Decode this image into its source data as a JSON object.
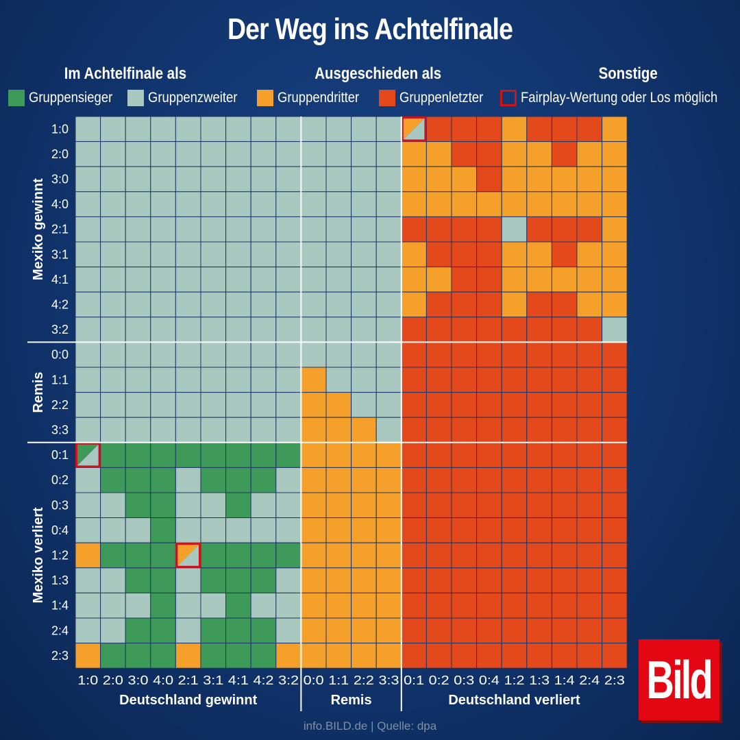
{
  "chart_data": {
    "type": "heatmap",
    "title": "Der Weg ins Achtelfinale",
    "legend_groups": [
      "Im Achtelfinale als",
      "Ausgeschieden als",
      "Sonstige"
    ],
    "legend": [
      {
        "code": "S",
        "label": "Gruppensieger",
        "color": "#3d9a58"
      },
      {
        "code": "Z",
        "label": "Gruppenzweiter",
        "color": "#a9c8c0"
      },
      {
        "code": "D",
        "label": "Gruppendritter",
        "color": "#f4a02a"
      },
      {
        "code": "L",
        "label": "Gruppenletzter",
        "color": "#e4491c"
      },
      {
        "code": "F",
        "label": "Fairplay-Wertung oder Los möglich",
        "color": "#d0121b"
      }
    ],
    "x_groups": [
      "Deutschland gewinnt",
      "Remis",
      "Deutschland verliert"
    ],
    "x_labels": [
      "1:0",
      "2:0",
      "3:0",
      "4:0",
      "2:1",
      "3:1",
      "4:1",
      "4:2",
      "3:2",
      "0:0",
      "1:1",
      "2:2",
      "3:3",
      "0:1",
      "0:2",
      "0:3",
      "0:4",
      "1:2",
      "1:3",
      "1:4",
      "2:4",
      "2:3"
    ],
    "y_groups": [
      "Mexiko gewinnt",
      "Remis",
      "Mexiko verliert"
    ],
    "y_labels": [
      "1:0",
      "2:0",
      "3:0",
      "4:0",
      "2:1",
      "3:1",
      "4:1",
      "4:2",
      "3:2",
      "0:0",
      "1:1",
      "2:2",
      "3:3",
      "0:1",
      "0:2",
      "0:3",
      "0:4",
      "1:2",
      "1:3",
      "1:4",
      "2:4",
      "2:3"
    ],
    "cells_note_codes": "S=Gruppensieger, Z=Gruppenzweiter, D=Gruppendritter, L=Gruppenletzter, X/Y=Fairplay-Wertung oder Los zwischen X und Y",
    "cells": [
      "Z Z Z Z Z Z Z Z Z Z Z Z Z D/Z L L L D L L L D",
      "Z Z Z Z Z Z Z Z Z Z Z Z Z D D L L D D L D D",
      "Z Z Z Z Z Z Z Z Z Z Z Z Z D D D L D D D D D",
      "Z Z Z Z Z Z Z Z Z Z Z Z Z D D D D D D D D D",
      "Z Z Z Z Z Z Z Z Z Z Z Z Z L L L L Z L L L D",
      "Z Z Z Z Z Z Z Z Z Z Z Z Z D L L L D D L D D",
      "Z Z Z Z Z Z Z Z Z Z Z Z Z D D L L D D D D D",
      "Z Z Z Z Z Z Z Z Z Z Z Z Z D L L L D L L D D",
      "Z Z Z Z Z Z Z Z Z Z Z Z Z L L L L L L L L Z",
      "Z Z Z Z Z Z Z Z Z Z Z Z Z L L L L L L L L L",
      "Z Z Z Z Z Z Z Z Z D Z Z Z L L L L L L L L L",
      "Z Z Z Z Z Z Z Z Z D D Z Z L L L L L L L L L",
      "Z Z Z Z Z Z Z Z Z D D D Z L L L L L L L L L",
      "S/Z S S S S S S S S D D D D L L L L L L L L L",
      "Z S S S Z S S S Z D D D D L L L L L L L L L",
      "Z Z S S Z Z S Z Z D D D D L L L L L L L L L",
      "Z Z Z S Z Z Z Z Z D D D D L L L L L L L L L",
      "D S S S D/Z S S S S D D D D L L L L L L L L L",
      "Z Z S S Z S S S Z D D D D L L L L L L L L L",
      "Z Z Z S Z Z S Z Z D D D D L L L L L L L L L",
      "Z Z S S Z S S S Z D D D D L L L L L L L L L",
      "D S S S D S S S D D D D D L L L L L L L L L"
    ]
  },
  "footer": "info.BILD.de | Quelle: dpa",
  "logo_text": "Bild"
}
